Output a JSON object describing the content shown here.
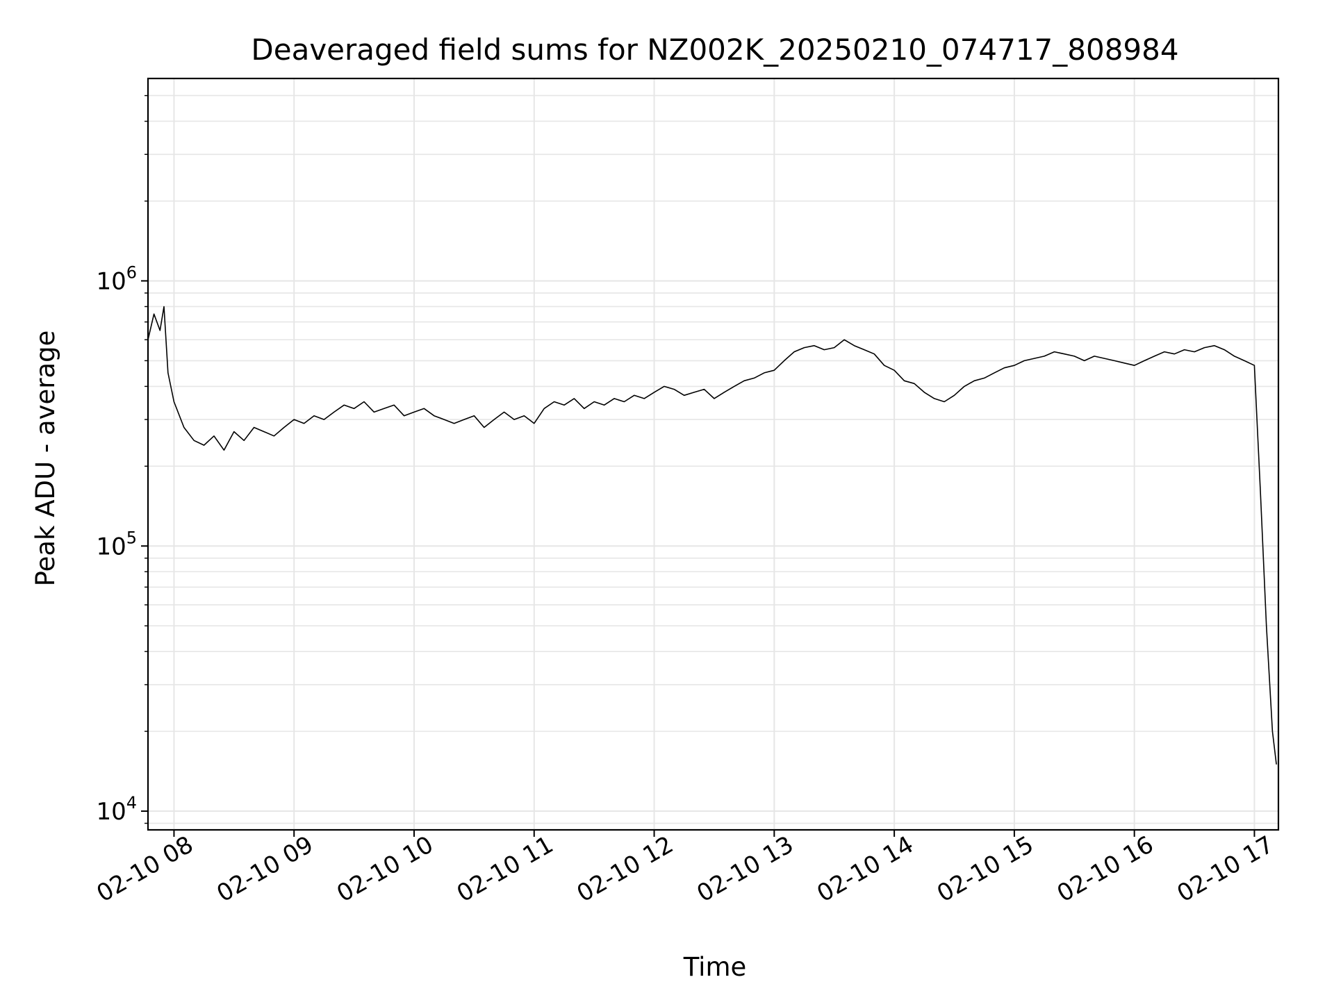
{
  "chart_data": {
    "type": "line",
    "title": "Deaveraged field sums for NZ002K_20250210_074717_808984",
    "xlabel": "Time",
    "ylabel": "Peak ADU - average",
    "yscale": "log",
    "ylim": [
      8500,
      5800000
    ],
    "xlim": [
      "2025-02-10 07:47",
      "2025-02-10 17:12"
    ],
    "grid": true,
    "line_color": "#000000",
    "x_ticks": [
      {
        "t": "2025-02-10 08:00",
        "label": "02-10 08"
      },
      {
        "t": "2025-02-10 09:00",
        "label": "02-10 09"
      },
      {
        "t": "2025-02-10 10:00",
        "label": "02-10 10"
      },
      {
        "t": "2025-02-10 11:00",
        "label": "02-10 11"
      },
      {
        "t": "2025-02-10 12:00",
        "label": "02-10 12"
      },
      {
        "t": "2025-02-10 13:00",
        "label": "02-10 13"
      },
      {
        "t": "2025-02-10 14:00",
        "label": "02-10 14"
      },
      {
        "t": "2025-02-10 15:00",
        "label": "02-10 15"
      },
      {
        "t": "2025-02-10 16:00",
        "label": "02-10 16"
      },
      {
        "t": "2025-02-10 17:00",
        "label": "02-10 17"
      }
    ],
    "y_ticks": [
      {
        "value": 10000,
        "base": "10",
        "exp": "4"
      },
      {
        "value": 100000,
        "base": "10",
        "exp": "5"
      },
      {
        "value": 1000000,
        "base": "10",
        "exp": "6"
      }
    ],
    "series": [
      {
        "x": [
          "2025-02-10 07:47",
          "2025-02-10 07:50",
          "2025-02-10 07:53",
          "2025-02-10 07:55",
          "2025-02-10 07:57",
          "2025-02-10 08:00",
          "2025-02-10 08:05",
          "2025-02-10 08:10",
          "2025-02-10 08:15",
          "2025-02-10 08:20",
          "2025-02-10 08:25",
          "2025-02-10 08:30",
          "2025-02-10 08:35",
          "2025-02-10 08:40",
          "2025-02-10 08:45",
          "2025-02-10 08:50",
          "2025-02-10 08:55",
          "2025-02-10 09:00",
          "2025-02-10 09:05",
          "2025-02-10 09:10",
          "2025-02-10 09:15",
          "2025-02-10 09:20",
          "2025-02-10 09:25",
          "2025-02-10 09:30",
          "2025-02-10 09:35",
          "2025-02-10 09:40",
          "2025-02-10 09:45",
          "2025-02-10 09:50",
          "2025-02-10 09:55",
          "2025-02-10 10:00",
          "2025-02-10 10:05",
          "2025-02-10 10:10",
          "2025-02-10 10:15",
          "2025-02-10 10:20",
          "2025-02-10 10:25",
          "2025-02-10 10:30",
          "2025-02-10 10:35",
          "2025-02-10 10:40",
          "2025-02-10 10:45",
          "2025-02-10 10:50",
          "2025-02-10 10:55",
          "2025-02-10 11:00",
          "2025-02-10 11:05",
          "2025-02-10 11:10",
          "2025-02-10 11:15",
          "2025-02-10 11:20",
          "2025-02-10 11:25",
          "2025-02-10 11:30",
          "2025-02-10 11:35",
          "2025-02-10 11:40",
          "2025-02-10 11:45",
          "2025-02-10 11:50",
          "2025-02-10 11:55",
          "2025-02-10 12:00",
          "2025-02-10 12:05",
          "2025-02-10 12:10",
          "2025-02-10 12:15",
          "2025-02-10 12:20",
          "2025-02-10 12:25",
          "2025-02-10 12:30",
          "2025-02-10 12:35",
          "2025-02-10 12:40",
          "2025-02-10 12:45",
          "2025-02-10 12:50",
          "2025-02-10 12:55",
          "2025-02-10 13:00",
          "2025-02-10 13:05",
          "2025-02-10 13:10",
          "2025-02-10 13:15",
          "2025-02-10 13:20",
          "2025-02-10 13:25",
          "2025-02-10 13:30",
          "2025-02-10 13:35",
          "2025-02-10 13:40",
          "2025-02-10 13:45",
          "2025-02-10 13:50",
          "2025-02-10 13:55",
          "2025-02-10 14:00",
          "2025-02-10 14:05",
          "2025-02-10 14:10",
          "2025-02-10 14:15",
          "2025-02-10 14:20",
          "2025-02-10 14:25",
          "2025-02-10 14:30",
          "2025-02-10 14:35",
          "2025-02-10 14:40",
          "2025-02-10 14:45",
          "2025-02-10 14:50",
          "2025-02-10 14:55",
          "2025-02-10 15:00",
          "2025-02-10 15:05",
          "2025-02-10 15:10",
          "2025-02-10 15:15",
          "2025-02-10 15:20",
          "2025-02-10 15:25",
          "2025-02-10 15:30",
          "2025-02-10 15:35",
          "2025-02-10 15:40",
          "2025-02-10 15:45",
          "2025-02-10 15:50",
          "2025-02-10 15:55",
          "2025-02-10 16:00",
          "2025-02-10 16:05",
          "2025-02-10 16:10",
          "2025-02-10 16:15",
          "2025-02-10 16:20",
          "2025-02-10 16:25",
          "2025-02-10 16:30",
          "2025-02-10 16:35",
          "2025-02-10 16:40",
          "2025-02-10 16:45",
          "2025-02-10 16:50",
          "2025-02-10 16:55",
          "2025-02-10 17:00",
          "2025-02-10 17:03",
          "2025-02-10 17:06",
          "2025-02-10 17:09",
          "2025-02-10 17:11"
        ],
        "values": [
          600000,
          750000,
          650000,
          800000,
          450000,
          350000,
          280000,
          250000,
          240000,
          260000,
          230000,
          270000,
          250000,
          280000,
          270000,
          260000,
          280000,
          300000,
          290000,
          310000,
          300000,
          320000,
          340000,
          330000,
          350000,
          320000,
          330000,
          340000,
          310000,
          320000,
          330000,
          310000,
          300000,
          290000,
          300000,
          310000,
          280000,
          300000,
          320000,
          300000,
          310000,
          290000,
          330000,
          350000,
          340000,
          360000,
          330000,
          350000,
          340000,
          360000,
          350000,
          370000,
          360000,
          380000,
          400000,
          390000,
          370000,
          380000,
          390000,
          360000,
          380000,
          400000,
          420000,
          430000,
          450000,
          460000,
          500000,
          540000,
          560000,
          570000,
          550000,
          560000,
          600000,
          570000,
          550000,
          530000,
          480000,
          460000,
          420000,
          410000,
          380000,
          360000,
          350000,
          370000,
          400000,
          420000,
          430000,
          450000,
          470000,
          480000,
          500000,
          510000,
          520000,
          540000,
          530000,
          520000,
          500000,
          520000,
          510000,
          500000,
          490000,
          480000,
          500000,
          520000,
          540000,
          530000,
          550000,
          540000,
          560000,
          570000,
          550000,
          520000,
          500000,
          480000,
          160000,
          50000,
          20000,
          15000
        ]
      }
    ]
  }
}
